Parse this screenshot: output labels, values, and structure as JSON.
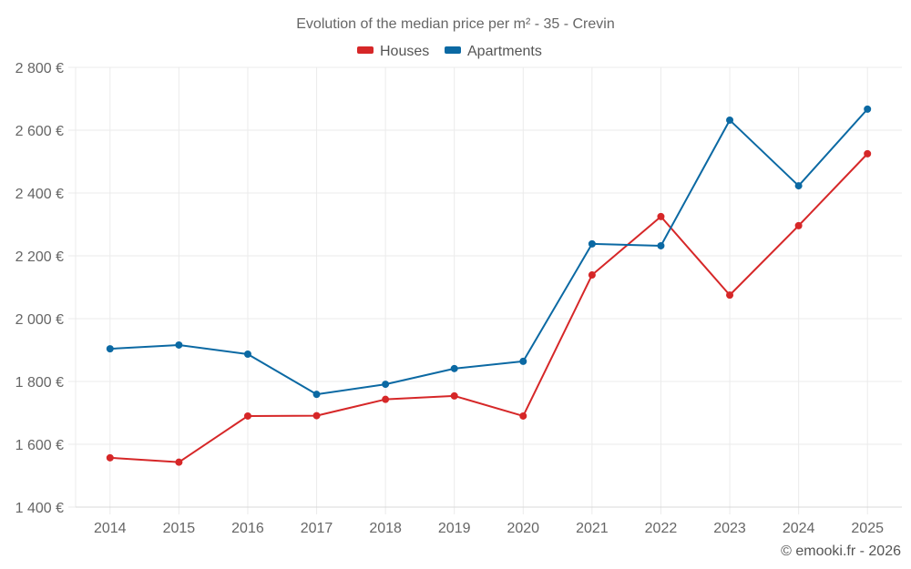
{
  "chart_data": {
    "type": "line",
    "title": "Evolution of the median price per m² - 35 - Crevin",
    "xlabel": "",
    "ylabel": "",
    "x": [
      "2014",
      "2015",
      "2016",
      "2017",
      "2018",
      "2019",
      "2020",
      "2021",
      "2022",
      "2023",
      "2024",
      "2025"
    ],
    "ylim": [
      1400,
      2800
    ],
    "yticks": [
      1400,
      1600,
      1800,
      2000,
      2200,
      2400,
      2600,
      2800
    ],
    "ytick_labels": [
      "1 400 €",
      "1 600 €",
      "1 800 €",
      "2 000 €",
      "2 200 €",
      "2 400 €",
      "2 600 €",
      "2 800 €"
    ],
    "grid": true,
    "legend_position": "top-center",
    "series": [
      {
        "name": "Houses",
        "color": "#d62728",
        "values": [
          1557,
          1543,
          1690,
          1691,
          1743,
          1754,
          1690,
          2139,
          2325,
          2075,
          2296,
          2525
        ]
      },
      {
        "name": "Apartments",
        "color": "#0b69a3",
        "values": [
          1904,
          1916,
          1887,
          1759,
          1791,
          1841,
          1864,
          2238,
          2232,
          2632,
          2423,
          2667
        ]
      }
    ],
    "credit": "© emooki.fr - 2026"
  }
}
